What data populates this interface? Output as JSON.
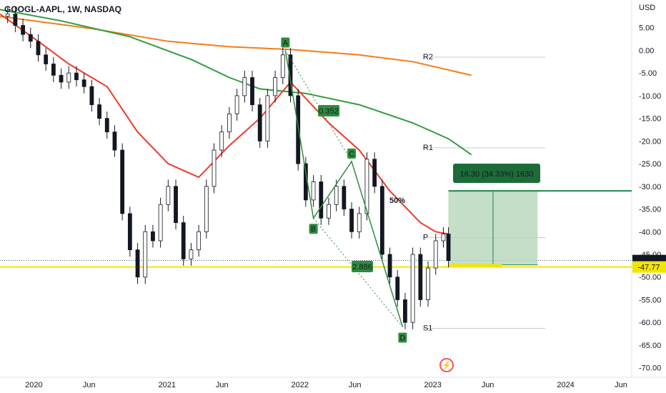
{
  "header": {
    "title": "GOOGL-AAPL, 1W, NASDAQ"
  },
  "icons": {
    "flash": "lightning-icon"
  },
  "colors": {
    "up": "#ffffff",
    "down": "#131722",
    "ma_red": "#ef3b2c",
    "ma_green": "#2e9e3e",
    "ma_orange": "#f57c17",
    "pattern": "#2e8b3e",
    "target_line": "#1e8a4c",
    "price_gray": "#131722",
    "yellow": "#f2e600",
    "box": "#b5d6b9"
  },
  "chart_data": {
    "type": "candlestick",
    "yunit": "USD",
    "ylim": [
      -71,
      10
    ],
    "yticks": [
      "5.00",
      "0.00",
      "-5.00",
      "-10.00",
      "-15.00",
      "-20.00",
      "-25.00",
      "-30.00",
      "-35.00",
      "-40.00",
      "-45.00",
      "-50.00",
      "-55.00",
      "-60.00",
      "-65.00",
      "-70.00"
    ],
    "ytick_values": [
      5,
      0,
      -5,
      -10,
      -15,
      -20,
      -25,
      -30,
      -35,
      -40,
      -45,
      -50,
      -55,
      -60,
      -65,
      -70
    ],
    "xticks": [
      "2020",
      "Jun",
      "2021",
      "Jun",
      "2022",
      "Jun",
      "2023",
      "Jun",
      "2024",
      "Jun"
    ],
    "xtick_dates": [
      "2020-01-01",
      "2020-06-01",
      "2021-01-01",
      "2021-06-01",
      "2022-01-01",
      "2022-06-01",
      "2023-01-01",
      "2023-06-01",
      "2024-01-01",
      "2024-06-01"
    ],
    "last_price_label": "-46.36",
    "last_price": -46.36,
    "support_label": "-47.77",
    "support_price": -47.77,
    "close_series": [
      {
        "d": "2019-09-30",
        "c": 7.5
      },
      {
        "d": "2019-10-21",
        "c": 8.0
      },
      {
        "d": "2019-11-11",
        "c": 5.5
      },
      {
        "d": "2019-12-02",
        "c": 3.5
      },
      {
        "d": "2019-12-23",
        "c": 2.0
      },
      {
        "d": "2020-01-13",
        "c": -1.0
      },
      {
        "d": "2020-02-03",
        "c": -3.0
      },
      {
        "d": "2020-02-24",
        "c": -5.5
      },
      {
        "d": "2020-03-16",
        "c": -7.0
      },
      {
        "d": "2020-04-06",
        "c": -5.0
      },
      {
        "d": "2020-04-27",
        "c": -6.5
      },
      {
        "d": "2020-05-18",
        "c": -8.0
      },
      {
        "d": "2020-06-08",
        "c": -12.0
      },
      {
        "d": "2020-06-29",
        "c": -15.0
      },
      {
        "d": "2020-07-20",
        "c": -18.0
      },
      {
        "d": "2020-08-10",
        "c": -22.0
      },
      {
        "d": "2020-08-31",
        "c": -36.0
      },
      {
        "d": "2020-09-21",
        "c": -44.0
      },
      {
        "d": "2020-10-12",
        "c": -50.0
      },
      {
        "d": "2020-11-02",
        "c": -40.0
      },
      {
        "d": "2020-11-23",
        "c": -42.0
      },
      {
        "d": "2020-12-14",
        "c": -34.0
      },
      {
        "d": "2021-01-04",
        "c": -30.0
      },
      {
        "d": "2021-01-25",
        "c": -38.0
      },
      {
        "d": "2021-02-15",
        "c": -46.0
      },
      {
        "d": "2021-03-08",
        "c": -44.0
      },
      {
        "d": "2021-03-29",
        "c": -40.0
      },
      {
        "d": "2021-04-19",
        "c": -30.0
      },
      {
        "d": "2021-05-10",
        "c": -22.0
      },
      {
        "d": "2021-05-31",
        "c": -18.0
      },
      {
        "d": "2021-06-21",
        "c": -14.0
      },
      {
        "d": "2021-07-12",
        "c": -10.0
      },
      {
        "d": "2021-08-02",
        "c": -6.0
      },
      {
        "d": "2021-08-23",
        "c": -12.0
      },
      {
        "d": "2021-09-13",
        "c": -20.0
      },
      {
        "d": "2021-10-04",
        "c": -10.0
      },
      {
        "d": "2021-10-25",
        "c": -6.0
      },
      {
        "d": "2021-11-15",
        "c": -1.0
      },
      {
        "d": "2021-12-06",
        "c": -10.0
      },
      {
        "d": "2021-12-27",
        "c": -25.0
      },
      {
        "d": "2022-01-17",
        "c": -33.0
      },
      {
        "d": "2022-02-07",
        "c": -29.0
      },
      {
        "d": "2022-02-28",
        "c": -37.0
      },
      {
        "d": "2022-03-21",
        "c": -34.0
      },
      {
        "d": "2022-04-11",
        "c": -30.0
      },
      {
        "d": "2022-05-02",
        "c": -35.0
      },
      {
        "d": "2022-05-23",
        "c": -40.0
      },
      {
        "d": "2022-06-13",
        "c": -36.0
      },
      {
        "d": "2022-07-04",
        "c": -24.0
      },
      {
        "d": "2022-07-25",
        "c": -30.0
      },
      {
        "d": "2022-08-15",
        "c": -45.0
      },
      {
        "d": "2022-09-05",
        "c": -50.0
      },
      {
        "d": "2022-09-26",
        "c": -55.0
      },
      {
        "d": "2022-10-17",
        "c": -60.0
      },
      {
        "d": "2022-11-07",
        "c": -45.0
      },
      {
        "d": "2022-11-28",
        "c": -55.0
      },
      {
        "d": "2022-12-19",
        "c": -48.0
      },
      {
        "d": "2023-01-09",
        "c": -42.0
      },
      {
        "d": "2023-01-30",
        "c": -40.5
      },
      {
        "d": "2023-02-13",
        "c": -46.36
      }
    ],
    "ma_red": [
      {
        "d": "2019-09-30",
        "v": 8.0
      },
      {
        "d": "2020-01-13",
        "v": 2.0
      },
      {
        "d": "2020-04-06",
        "v": -3.0
      },
      {
        "d": "2020-07-20",
        "v": -8.0
      },
      {
        "d": "2020-10-12",
        "v": -18.0
      },
      {
        "d": "2021-01-04",
        "v": -25.0
      },
      {
        "d": "2021-03-29",
        "v": -28.0
      },
      {
        "d": "2021-06-21",
        "v": -21.0
      },
      {
        "d": "2021-09-13",
        "v": -15.0
      },
      {
        "d": "2021-12-06",
        "v": -7.0
      },
      {
        "d": "2022-03-21",
        "v": -16.0
      },
      {
        "d": "2022-06-13",
        "v": -22.0
      },
      {
        "d": "2022-09-05",
        "v": -31.0
      },
      {
        "d": "2022-11-28",
        "v": -38.0
      },
      {
        "d": "2023-01-09",
        "v": -40.0
      },
      {
        "d": "2023-02-13",
        "v": -40.5
      }
    ],
    "ma_green": [
      {
        "d": "2019-09-30",
        "v": 9.0
      },
      {
        "d": "2020-03-16",
        "v": 6.5
      },
      {
        "d": "2020-09-21",
        "v": 3.0
      },
      {
        "d": "2021-03-08",
        "v": -2.0
      },
      {
        "d": "2021-06-21",
        "v": -6.0
      },
      {
        "d": "2021-09-13",
        "v": -8.5
      },
      {
        "d": "2022-01-17",
        "v": -9.5
      },
      {
        "d": "2022-06-13",
        "v": -12.0
      },
      {
        "d": "2022-11-07",
        "v": -16.0
      },
      {
        "d": "2023-02-13",
        "v": -19.5
      },
      {
        "d": "2023-04-17",
        "v": -23.0
      }
    ],
    "ma_orange": [
      {
        "d": "2019-09-30",
        "v": 7.5
      },
      {
        "d": "2020-06-08",
        "v": 4.8
      },
      {
        "d": "2021-01-04",
        "v": 2.0
      },
      {
        "d": "2021-06-21",
        "v": 0.8
      },
      {
        "d": "2021-12-06",
        "v": 0.2
      },
      {
        "d": "2022-06-13",
        "v": -1.0
      },
      {
        "d": "2022-11-07",
        "v": -2.5
      },
      {
        "d": "2023-04-17",
        "v": -5.5
      }
    ],
    "pattern": {
      "points": [
        {
          "label": "A",
          "d": "2021-11-22",
          "v": 0.0
        },
        {
          "label": "B",
          "d": "2022-02-07",
          "v": -37.0
        },
        {
          "label": "C",
          "d": "2022-05-23",
          "v": -24.5
        },
        {
          "label": "D",
          "d": "2022-10-10",
          "v": -61.0
        }
      ],
      "ratio_ab": "0.352",
      "ratio_bd": "2.886",
      "fib_label": "50%",
      "fib_level": -31.0
    },
    "pivots": [
      {
        "label": "R2",
        "v": -1.5
      },
      {
        "label": "R1",
        "v": -21.5
      },
      {
        "label": "P",
        "v": -41.3
      },
      {
        "label": "S1",
        "v": -61.3
      }
    ],
    "trade": {
      "label": "16.30 (34.33%) 1630",
      "entry": -47.3,
      "target": -31.0,
      "start": "2023-02-13",
      "end": "2023-10-16"
    }
  }
}
